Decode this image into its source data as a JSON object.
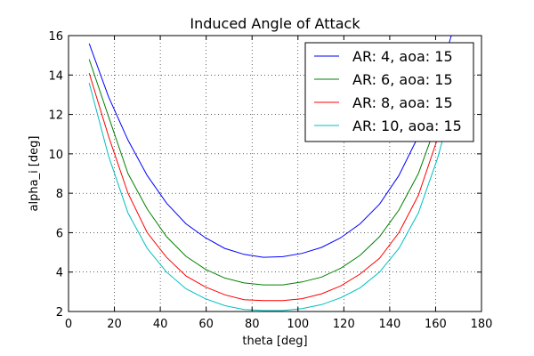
{
  "chart_data": {
    "type": "line",
    "title": "Induced Angle of Attack",
    "xlabel": "theta [deg]",
    "ylabel": "alpha_i [deg]",
    "xlim": [
      0,
      180
    ],
    "ylim": [
      2,
      16
    ],
    "xticks": [
      0,
      20,
      40,
      60,
      80,
      100,
      120,
      140,
      160,
      180
    ],
    "yticks": [
      2,
      4,
      6,
      8,
      10,
      12,
      14,
      16
    ],
    "grid": true,
    "legend_position": "top-right",
    "x": [
      9,
      17.4,
      25.9,
      34.3,
      42.7,
      51.2,
      59.6,
      68.1,
      76.5,
      84.9,
      93.4,
      101.8,
      110.3,
      118.7,
      127.1,
      135.6,
      144,
      152.5,
      160.9,
      169.3
    ],
    "series": [
      {
        "name": "AR: 4, aoa: 15",
        "color": "#0000ff",
        "values": [
          15.6,
          12.9,
          10.7,
          8.9,
          7.5,
          6.45,
          5.75,
          5.2,
          4.9,
          4.75,
          4.78,
          4.95,
          5.25,
          5.75,
          6.45,
          7.45,
          8.9,
          10.9,
          13.6,
          17.0
        ]
      },
      {
        "name": "AR: 6, aoa: 15",
        "color": "#008000",
        "values": [
          14.8,
          11.9,
          9.0,
          7.2,
          5.8,
          4.8,
          4.15,
          3.7,
          3.45,
          3.35,
          3.35,
          3.5,
          3.75,
          4.2,
          4.85,
          5.8,
          7.15,
          9.0,
          11.7,
          15.2
        ]
      },
      {
        "name": "AR: 8, aoa: 15",
        "color": "#ff0000",
        "values": [
          14.1,
          10.9,
          8.0,
          6.0,
          4.75,
          3.8,
          3.25,
          2.85,
          2.6,
          2.55,
          2.55,
          2.65,
          2.9,
          3.3,
          3.9,
          4.7,
          6.0,
          7.9,
          10.8,
          14.4
        ]
      },
      {
        "name": "AR: 10, aoa: 15",
        "color": "#00bfbf",
        "values": [
          13.6,
          9.9,
          7.0,
          5.2,
          4.0,
          3.15,
          2.65,
          2.3,
          2.1,
          2.05,
          2.05,
          2.15,
          2.35,
          2.7,
          3.2,
          4.0,
          5.2,
          7.0,
          9.8,
          13.4
        ]
      }
    ]
  }
}
